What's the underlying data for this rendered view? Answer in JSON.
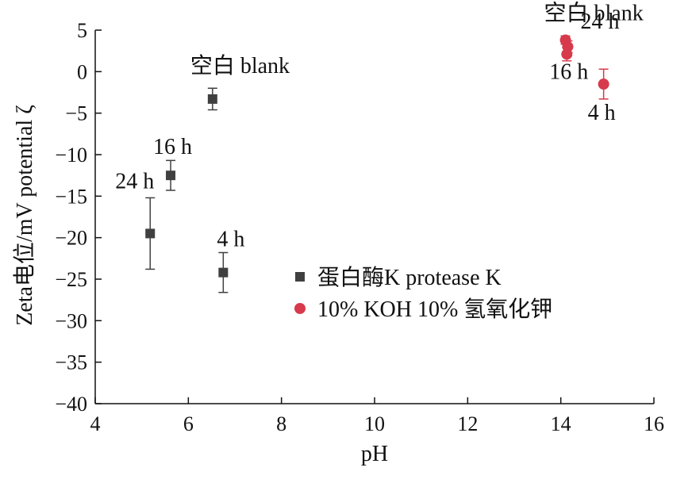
{
  "chart_data": {
    "type": "scatter",
    "xlabel": "pH",
    "ylabel": "Zeta电位/mV potential ζ",
    "xlim": [
      4,
      16
    ],
    "ylim": [
      -40,
      5
    ],
    "xticks": [
      4,
      6,
      8,
      10,
      12,
      14,
      16
    ],
    "yticks": [
      5,
      0,
      -5,
      -10,
      -15,
      -20,
      -25,
      -30,
      -35,
      -40
    ],
    "grid": false,
    "legend_position": "right-center",
    "series": [
      {
        "name": "蛋白酶K protease K",
        "marker": "square",
        "color": "#404040",
        "points": [
          {
            "label": "空白 blank",
            "x": 6.52,
            "y": -3.3,
            "err": 1.3
          },
          {
            "label": "16 h",
            "x": 5.62,
            "y": -12.5,
            "err": 1.8
          },
          {
            "label": "24 h",
            "x": 5.18,
            "y": -19.5,
            "err": 4.3
          },
          {
            "label": "4 h",
            "x": 6.75,
            "y": -24.2,
            "err": 2.4
          }
        ]
      },
      {
        "name": "10% KOH 10% 氢氧化钾",
        "marker": "circle",
        "color": "#d63a4c",
        "points": [
          {
            "label": "空白 blank",
            "x": 14.1,
            "y": 3.8,
            "err": 0.5
          },
          {
            "label": "24 h",
            "x": 14.15,
            "y": 3.0,
            "err": 0.7
          },
          {
            "label": "16 h",
            "x": 14.13,
            "y": 2.1,
            "err": 0.8
          },
          {
            "label": "4 h",
            "x": 14.92,
            "y": -1.5,
            "err": 1.8
          }
        ]
      }
    ],
    "annotations": [
      {
        "text": "空白 blank",
        "series": 0,
        "point": 0
      },
      {
        "text": "16 h",
        "series": 0,
        "point": 1
      },
      {
        "text": "24 h",
        "series": 0,
        "point": 2
      },
      {
        "text": "4 h",
        "series": 0,
        "point": 3
      },
      {
        "text": "空白 blank",
        "series": 1,
        "point": 0
      },
      {
        "text": "24 h",
        "series": 1,
        "point": 1
      },
      {
        "text": "16 h",
        "series": 1,
        "point": 2
      },
      {
        "text": "4 h",
        "series": 1,
        "point": 3
      }
    ]
  }
}
